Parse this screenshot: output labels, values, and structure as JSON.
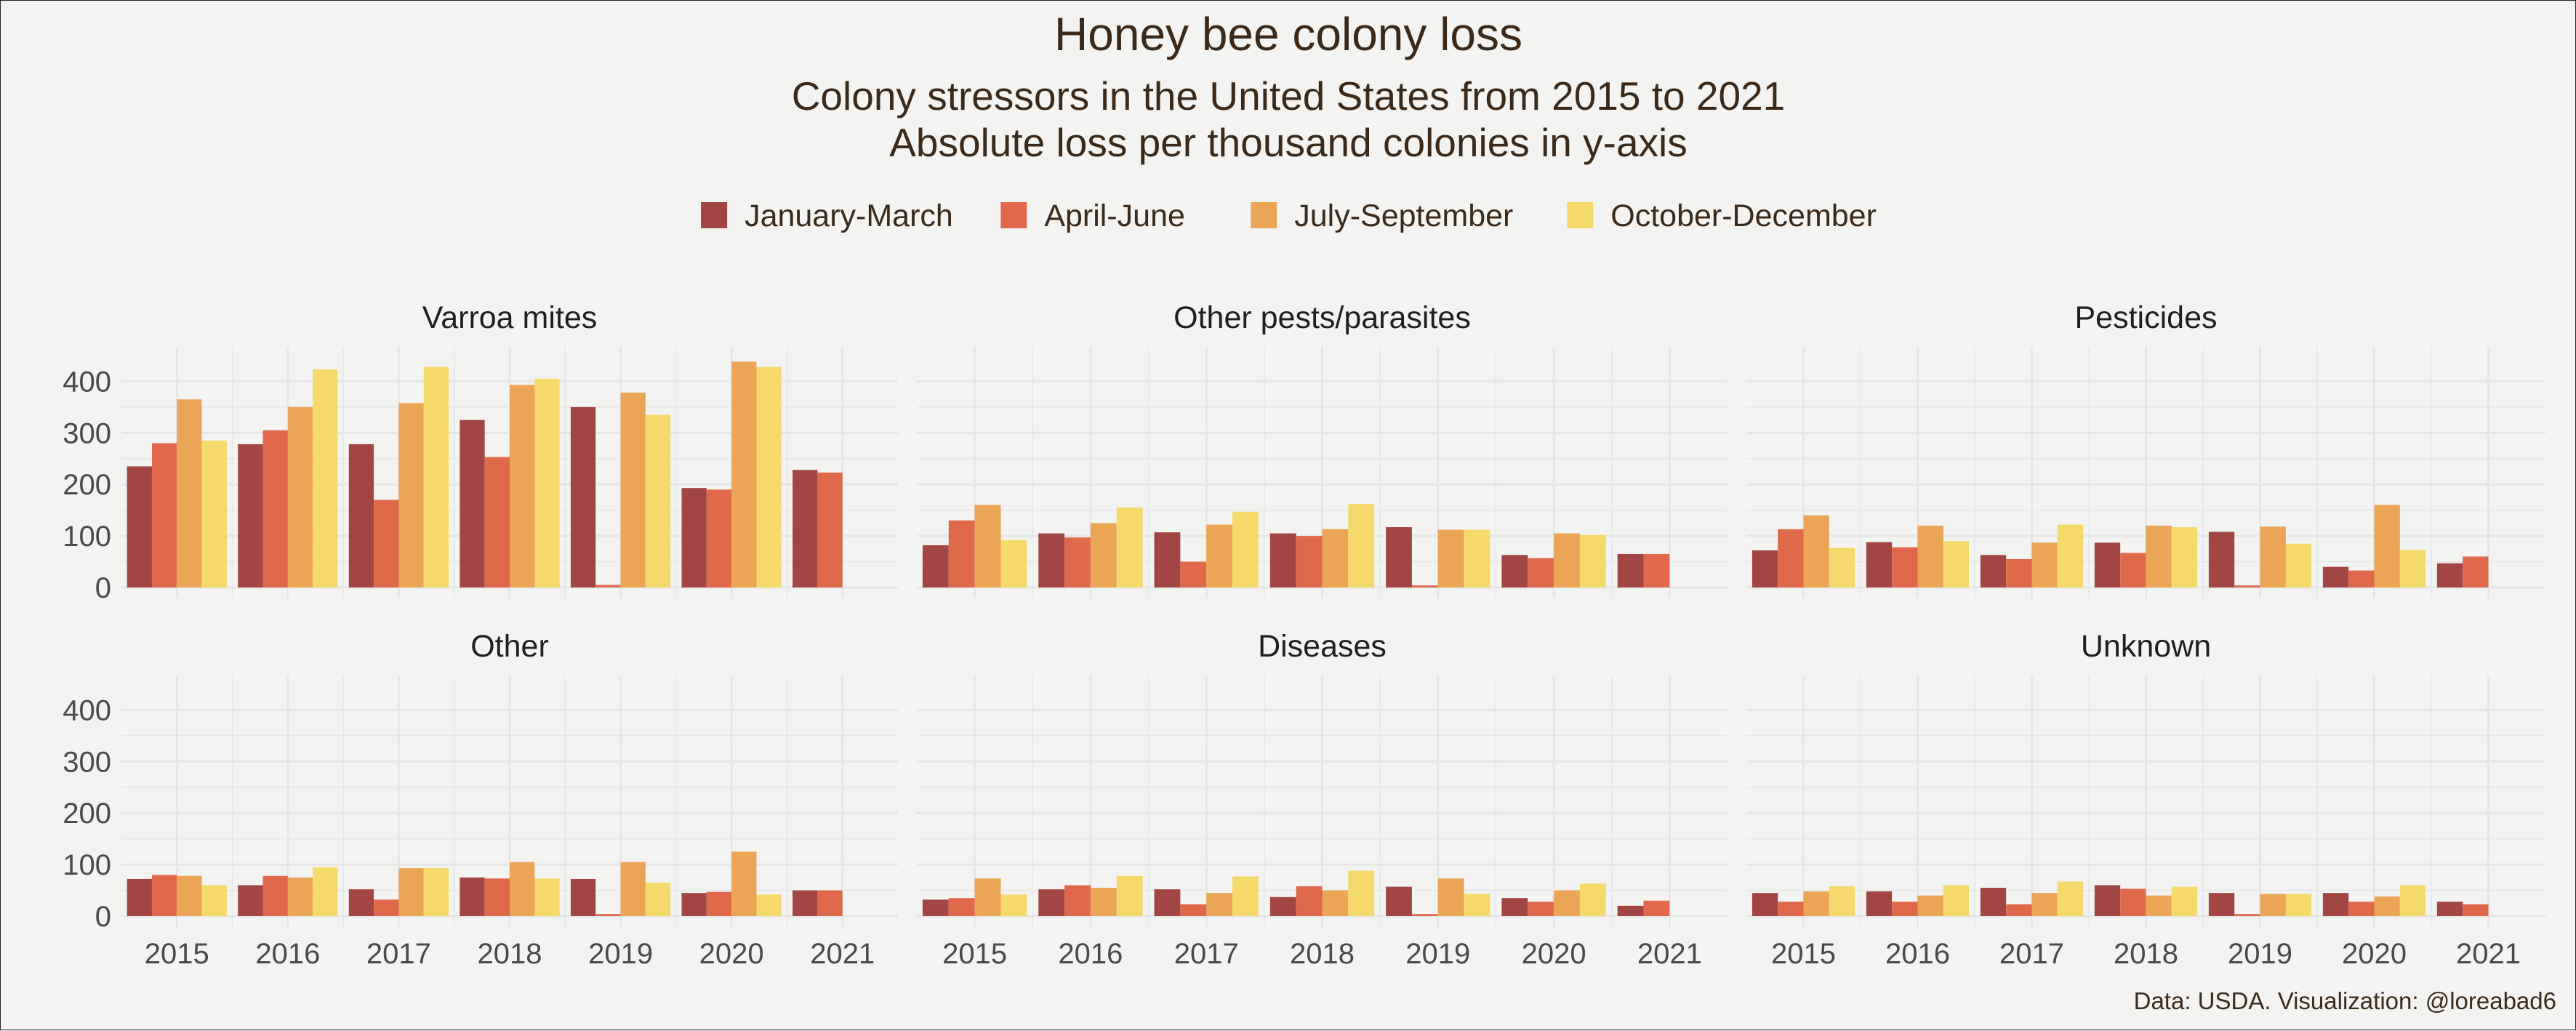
{
  "title": "Honey bee colony loss",
  "subtitle_line1": "Colony stressors in the United States from 2015 to 2021",
  "subtitle_line2": "Absolute loss per thousand colonies in y-axis",
  "caption": "Data: USDA. Visualization: @loreabad6",
  "colors": {
    "text": "#3b2a1a",
    "axis_text": "#4a4a4a",
    "grid": "#e6e6e6",
    "background": "#f3f4f2"
  },
  "chart_data": {
    "type": "bar",
    "layout": "facet-grid 2 rows x 3 columns, shared axes",
    "legend_position": "top",
    "grid": true,
    "categories": [
      "2015",
      "2016",
      "2017",
      "2018",
      "2019",
      "2020",
      "2021"
    ],
    "ylim": [
      0,
      450
    ],
    "yticks": [
      0,
      100,
      200,
      300,
      400
    ],
    "series_legend": [
      {
        "name": "January-March",
        "color": "#a24643"
      },
      {
        "name": "April-June",
        "color": "#e0694c"
      },
      {
        "name": "July-September",
        "color": "#eba556"
      },
      {
        "name": "October-December",
        "color": "#f5d96b"
      }
    ],
    "panels": [
      {
        "title": "Varroa mites",
        "series": [
          {
            "name": "January-March",
            "values": [
              235,
              278,
              278,
              325,
              350,
              193,
              228
            ]
          },
          {
            "name": "April-June",
            "values": [
              280,
              305,
              170,
              253,
              5,
              190,
              223
            ]
          },
          {
            "name": "July-September",
            "values": [
              365,
              350,
              358,
              393,
              378,
              438,
              null
            ]
          },
          {
            "name": "October-December",
            "values": [
              285,
              423,
              428,
              405,
              335,
              428,
              null
            ]
          }
        ]
      },
      {
        "title": "Other pests/parasites",
        "series": [
          {
            "name": "January-March",
            "values": [
              82,
              105,
              107,
              105,
              117,
              63,
              65
            ]
          },
          {
            "name": "April-June",
            "values": [
              130,
              97,
              50,
              100,
              4,
              57,
              65
            ]
          },
          {
            "name": "July-September",
            "values": [
              160,
              125,
              122,
              113,
              112,
              105,
              null
            ]
          },
          {
            "name": "October-December",
            "values": [
              92,
              155,
              147,
              162,
              112,
              102,
              null
            ]
          }
        ]
      },
      {
        "title": "Pesticides",
        "series": [
          {
            "name": "January-March",
            "values": [
              72,
              88,
              63,
              87,
              108,
              40,
              47
            ]
          },
          {
            "name": "April-June",
            "values": [
              113,
              78,
              55,
              67,
              4,
              33,
              60
            ]
          },
          {
            "name": "July-September",
            "values": [
              140,
              120,
              87,
              120,
              118,
              160,
              null
            ]
          },
          {
            "name": "October-December",
            "values": [
              77,
              90,
              122,
              117,
              85,
              73,
              null
            ]
          }
        ]
      },
      {
        "title": "Other",
        "series": [
          {
            "name": "January-March",
            "values": [
              72,
              60,
              52,
              75,
              72,
              45,
              50
            ]
          },
          {
            "name": "April-June",
            "values": [
              80,
              78,
              32,
              73,
              4,
              47,
              50
            ]
          },
          {
            "name": "July-September",
            "values": [
              78,
              75,
              93,
              105,
              105,
              125,
              null
            ]
          },
          {
            "name": "October-December",
            "values": [
              60,
              95,
              93,
              73,
              65,
              42,
              null
            ]
          }
        ]
      },
      {
        "title": "Diseases",
        "series": [
          {
            "name": "January-March",
            "values": [
              32,
              52,
              52,
              37,
              57,
              35,
              20
            ]
          },
          {
            "name": "April-June",
            "values": [
              35,
              60,
              23,
              58,
              4,
              28,
              30
            ]
          },
          {
            "name": "July-September",
            "values": [
              73,
              55,
              45,
              50,
              73,
              50,
              null
            ]
          },
          {
            "name": "October-December",
            "values": [
              42,
              78,
              77,
              88,
              43,
              63,
              null
            ]
          }
        ]
      },
      {
        "title": "Unknown",
        "series": [
          {
            "name": "January-March",
            "values": [
              45,
              48,
              55,
              60,
              45,
              45,
              28
            ]
          },
          {
            "name": "April-June",
            "values": [
              28,
              28,
              23,
              53,
              4,
              28,
              23
            ]
          },
          {
            "name": "July-September",
            "values": [
              48,
              40,
              45,
              40,
              43,
              38,
              null
            ]
          },
          {
            "name": "October-December",
            "values": [
              58,
              60,
              67,
              57,
              43,
              60,
              null
            ]
          }
        ]
      }
    ]
  }
}
